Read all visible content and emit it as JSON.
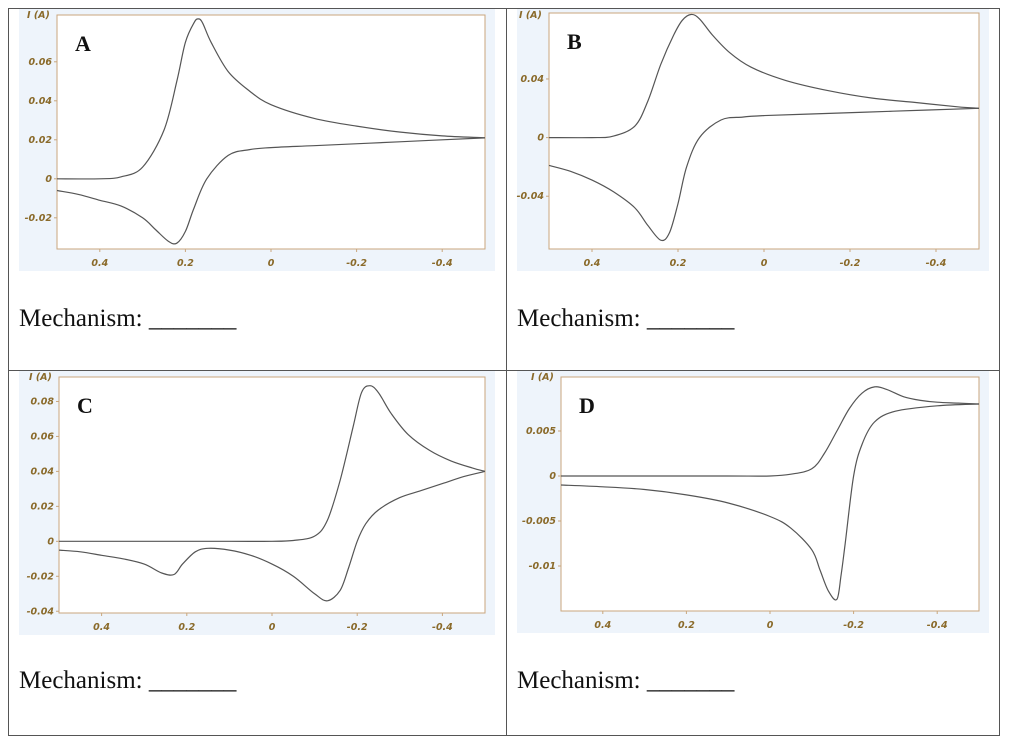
{
  "mechanism_label": "Mechanism:",
  "mechanism_blank": "_______",
  "chart_data": [
    {
      "type": "line",
      "label": "A",
      "ylabel": "I (A)",
      "xlim": [
        0.5,
        -0.5
      ],
      "ylim": [
        -0.036,
        0.084
      ],
      "xticks": [
        0.4,
        0.2,
        0,
        -0.2,
        -0.4
      ],
      "xtick_labels": [
        "0.4",
        "0.2",
        "0",
        "-0.2",
        "-0.4"
      ],
      "yticks": [
        0.06,
        0.04,
        0.02,
        0,
        -0.02
      ],
      "ytick_labels": [
        "0.06",
        "0.04",
        "0.02",
        "0",
        "-0.02"
      ],
      "forward": {
        "x": [
          0.5,
          0.4,
          0.35,
          0.3,
          0.25,
          0.22,
          0.2,
          0.18,
          0.17,
          0.16,
          0.14,
          0.1,
          0.05,
          0,
          -0.1,
          -0.2,
          -0.3,
          -0.4,
          -0.5
        ],
        "y": [
          0,
          0,
          0.001,
          0.006,
          0.025,
          0.05,
          0.07,
          0.08,
          0.082,
          0.08,
          0.07,
          0.055,
          0.045,
          0.038,
          0.031,
          0.027,
          0.024,
          0.022,
          0.021
        ]
      },
      "reverse": {
        "x": [
          -0.5,
          -0.3,
          -0.1,
          0,
          0.05,
          0.1,
          0.15,
          0.18,
          0.2,
          0.22,
          0.24,
          0.27,
          0.3,
          0.35,
          0.4,
          0.45,
          0.5
        ],
        "y": [
          0.021,
          0.019,
          0.017,
          0.016,
          0.015,
          0.012,
          0.0,
          -0.015,
          -0.027,
          -0.033,
          -0.032,
          -0.026,
          -0.02,
          -0.014,
          -0.011,
          -0.008,
          -0.006
        ]
      }
    },
    {
      "type": "line",
      "label": "B",
      "ylabel": "I (A)",
      "xlim": [
        0.5,
        -0.5
      ],
      "ylim": [
        -0.076,
        0.085
      ],
      "xticks": [
        0.4,
        0.2,
        0,
        -0.2,
        -0.4
      ],
      "xtick_labels": [
        "0.4",
        "0.2",
        "0",
        "-0.2",
        "-0.4"
      ],
      "yticks": [
        0.04,
        0,
        -0.04
      ],
      "ytick_labels": [
        "0.04",
        "0",
        "-0.04"
      ],
      "forward": {
        "x": [
          0.5,
          0.4,
          0.35,
          0.3,
          0.27,
          0.24,
          0.21,
          0.19,
          0.17,
          0.15,
          0.12,
          0.08,
          0.03,
          -0.05,
          -0.15,
          -0.25,
          -0.35,
          -0.45,
          -0.5
        ],
        "y": [
          0,
          0,
          0.001,
          0.008,
          0.025,
          0.05,
          0.07,
          0.08,
          0.084,
          0.081,
          0.07,
          0.058,
          0.048,
          0.039,
          0.032,
          0.027,
          0.024,
          0.021,
          0.02
        ]
      },
      "reverse": {
        "x": [
          -0.5,
          -0.3,
          -0.1,
          0,
          0.05,
          0.1,
          0.15,
          0.18,
          0.2,
          0.22,
          0.24,
          0.27,
          0.3,
          0.35,
          0.4,
          0.45,
          0.5
        ],
        "y": [
          0.02,
          0.018,
          0.016,
          0.015,
          0.014,
          0.012,
          0.0,
          -0.02,
          -0.045,
          -0.065,
          -0.07,
          -0.06,
          -0.048,
          -0.037,
          -0.029,
          -0.023,
          -0.019
        ]
      }
    },
    {
      "type": "line",
      "label": "C",
      "ylabel": "I (A)",
      "xlim": [
        0.5,
        -0.5
      ],
      "ylim": [
        -0.041,
        0.094
      ],
      "xticks": [
        0.4,
        0.2,
        0,
        -0.2,
        -0.4
      ],
      "xtick_labels": [
        "0.4",
        "0.2",
        "0",
        "-0.2",
        "-0.4"
      ],
      "yticks": [
        0.08,
        0.06,
        0.04,
        0.02,
        0,
        -0.02,
        -0.04
      ],
      "ytick_labels": [
        "0.08",
        "0.06",
        "0.04",
        "0.02",
        "0",
        "-0.02",
        "-0.04"
      ],
      "forward": {
        "x": [
          0.5,
          0.3,
          0.1,
          0,
          -0.05,
          -0.1,
          -0.13,
          -0.16,
          -0.19,
          -0.21,
          -0.23,
          -0.25,
          -0.28,
          -0.32,
          -0.37,
          -0.42,
          -0.47,
          -0.5
        ],
        "y": [
          0,
          0,
          0,
          0,
          0.0005,
          0.003,
          0.012,
          0.035,
          0.065,
          0.085,
          0.089,
          0.085,
          0.073,
          0.061,
          0.052,
          0.046,
          0.042,
          0.04
        ]
      },
      "reverse": {
        "x": [
          -0.5,
          -0.45,
          -0.4,
          -0.35,
          -0.3,
          -0.25,
          -0.22,
          -0.2,
          -0.18,
          -0.16,
          -0.13,
          -0.1,
          -0.05,
          0,
          0.05,
          0.1,
          0.15,
          0.18,
          0.21,
          0.23,
          0.26,
          0.3,
          0.35,
          0.4,
          0.45,
          0.5
        ],
        "y": [
          0.04,
          0.037,
          0.033,
          0.029,
          0.025,
          0.018,
          0.01,
          0.0,
          -0.015,
          -0.028,
          -0.034,
          -0.03,
          -0.02,
          -0.013,
          -0.008,
          -0.005,
          -0.004,
          -0.006,
          -0.013,
          -0.019,
          -0.018,
          -0.013,
          -0.01,
          -0.008,
          -0.006,
          -0.005
        ]
      }
    },
    {
      "type": "line",
      "label": "D",
      "ylabel": "I (A)",
      "xlim": [
        0.5,
        -0.5
      ],
      "ylim": [
        -0.015,
        0.011
      ],
      "xticks": [
        0.4,
        0.2,
        0,
        -0.2,
        -0.4
      ],
      "xtick_labels": [
        "0.4",
        "0.2",
        "0",
        "-0.2",
        "-0.4"
      ],
      "yticks": [
        0.005,
        0,
        -0.005,
        -0.01
      ],
      "ytick_labels": [
        "0.005",
        "0",
        "-0.005",
        "-0.01"
      ],
      "forward": {
        "x": [
          0.5,
          0.3,
          0.1,
          0,
          -0.05,
          -0.1,
          -0.13,
          -0.16,
          -0.19,
          -0.22,
          -0.25,
          -0.28,
          -0.32,
          -0.36,
          -0.4,
          -0.45,
          -0.5
        ],
        "y": [
          0,
          0,
          0,
          0,
          0.0002,
          0.0008,
          0.0025,
          0.005,
          0.0075,
          0.0092,
          0.0099,
          0.0096,
          0.0088,
          0.0084,
          0.0082,
          0.0081,
          0.008
        ]
      },
      "reverse": {
        "x": [
          -0.5,
          -0.4,
          -0.3,
          -0.25,
          -0.22,
          -0.2,
          -0.18,
          -0.17,
          -0.16,
          -0.14,
          -0.12,
          -0.1,
          -0.05,
          0,
          0.1,
          0.2,
          0.3,
          0.4,
          0.5
        ],
        "y": [
          0.008,
          0.0078,
          0.0072,
          0.006,
          0.0035,
          0.0,
          -0.0075,
          -0.011,
          -0.0137,
          -0.0128,
          -0.0105,
          -0.0082,
          -0.0058,
          -0.0045,
          -0.003,
          -0.0021,
          -0.0015,
          -0.0012,
          -0.001
        ]
      }
    }
  ]
}
